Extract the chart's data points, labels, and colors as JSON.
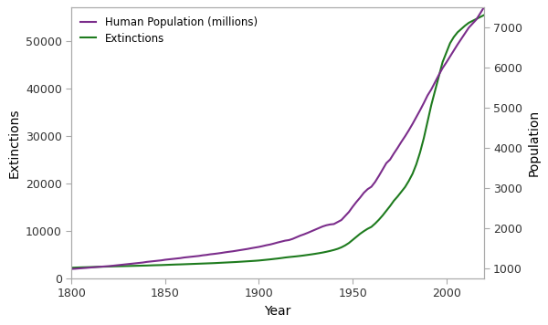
{
  "title": "",
  "xlabel": "Year",
  "ylabel_left": "Extinctions",
  "ylabel_right": "Population",
  "legend_entries": [
    "Human Population (millions)",
    "Extinctions"
  ],
  "population_color": "#7B2D8B",
  "extinction_color": "#1E7B1E",
  "background_color": "#ffffff",
  "xlim": [
    1800,
    2020
  ],
  "ylim_left": [
    0,
    57000
  ],
  "ylim_right": [
    750,
    7500
  ],
  "yticks_left": [
    0,
    10000,
    20000,
    30000,
    40000,
    50000
  ],
  "yticks_right": [
    1000,
    2000,
    3000,
    4000,
    5000,
    6000,
    7000
  ],
  "xticks": [
    1800,
    1850,
    1900,
    1950,
    2000
  ],
  "years": [
    1800,
    1802,
    1804,
    1806,
    1808,
    1810,
    1812,
    1814,
    1816,
    1818,
    1820,
    1822,
    1824,
    1826,
    1828,
    1830,
    1832,
    1834,
    1836,
    1838,
    1840,
    1842,
    1844,
    1846,
    1848,
    1850,
    1852,
    1854,
    1856,
    1858,
    1860,
    1862,
    1864,
    1866,
    1868,
    1870,
    1872,
    1874,
    1876,
    1878,
    1880,
    1882,
    1884,
    1886,
    1888,
    1890,
    1892,
    1894,
    1896,
    1898,
    1900,
    1902,
    1904,
    1906,
    1908,
    1910,
    1912,
    1914,
    1916,
    1918,
    1920,
    1922,
    1924,
    1926,
    1928,
    1930,
    1932,
    1934,
    1936,
    1938,
    1940,
    1942,
    1944,
    1946,
    1948,
    1950,
    1952,
    1954,
    1956,
    1958,
    1960,
    1962,
    1964,
    1966,
    1968,
    1970,
    1972,
    1974,
    1976,
    1978,
    1980,
    1982,
    1984,
    1986,
    1988,
    1990,
    1992,
    1994,
    1996,
    1998,
    2000,
    2002,
    2004,
    2006,
    2008,
    2010,
    2012,
    2014,
    2016,
    2018,
    2020
  ],
  "population_millions": [
    980,
    985,
    993,
    1000,
    1007,
    1015,
    1022,
    1030,
    1037,
    1044,
    1050,
    1060,
    1070,
    1080,
    1090,
    1100,
    1110,
    1120,
    1130,
    1140,
    1155,
    1165,
    1175,
    1185,
    1195,
    1210,
    1220,
    1230,
    1240,
    1250,
    1265,
    1275,
    1285,
    1295,
    1305,
    1320,
    1330,
    1345,
    1355,
    1367,
    1380,
    1395,
    1408,
    1420,
    1435,
    1450,
    1465,
    1480,
    1498,
    1514,
    1530,
    1550,
    1572,
    1590,
    1614,
    1640,
    1663,
    1686,
    1700,
    1730,
    1770,
    1810,
    1843,
    1880,
    1920,
    1960,
    2000,
    2040,
    2070,
    2090,
    2100,
    2150,
    2200,
    2300,
    2400,
    2530,
    2650,
    2760,
    2880,
    2970,
    3030,
    3150,
    3300,
    3460,
    3620,
    3710,
    3860,
    4000,
    4150,
    4290,
    4440,
    4600,
    4770,
    4940,
    5120,
    5310,
    5460,
    5640,
    5820,
    5990,
    6130,
    6280,
    6430,
    6580,
    6720,
    6860,
    7000,
    7100,
    7200,
    7350,
    7500
  ],
  "extinctions": [
    2200,
    2230,
    2260,
    2290,
    2310,
    2340,
    2360,
    2390,
    2410,
    2430,
    2450,
    2480,
    2500,
    2520,
    2540,
    2560,
    2580,
    2600,
    2620,
    2640,
    2660,
    2690,
    2720,
    2740,
    2760,
    2790,
    2820,
    2850,
    2880,
    2900,
    2930,
    2960,
    2990,
    3020,
    3050,
    3080,
    3110,
    3140,
    3170,
    3210,
    3250,
    3290,
    3330,
    3370,
    3410,
    3460,
    3510,
    3560,
    3610,
    3660,
    3720,
    3800,
    3880,
    3960,
    4050,
    4140,
    4240,
    4350,
    4440,
    4520,
    4600,
    4690,
    4790,
    4900,
    5010,
    5130,
    5260,
    5400,
    5560,
    5740,
    5940,
    6180,
    6490,
    6900,
    7400,
    8050,
    8700,
    9350,
    9900,
    10400,
    10800,
    11500,
    12300,
    13200,
    14200,
    15200,
    16300,
    17200,
    18200,
    19200,
    20500,
    22000,
    24000,
    26500,
    29500,
    33000,
    36500,
    39500,
    42500,
    45500,
    47500,
    49500,
    50800,
    51800,
    52500,
    53200,
    53800,
    54200,
    54600,
    55000,
    55400
  ]
}
